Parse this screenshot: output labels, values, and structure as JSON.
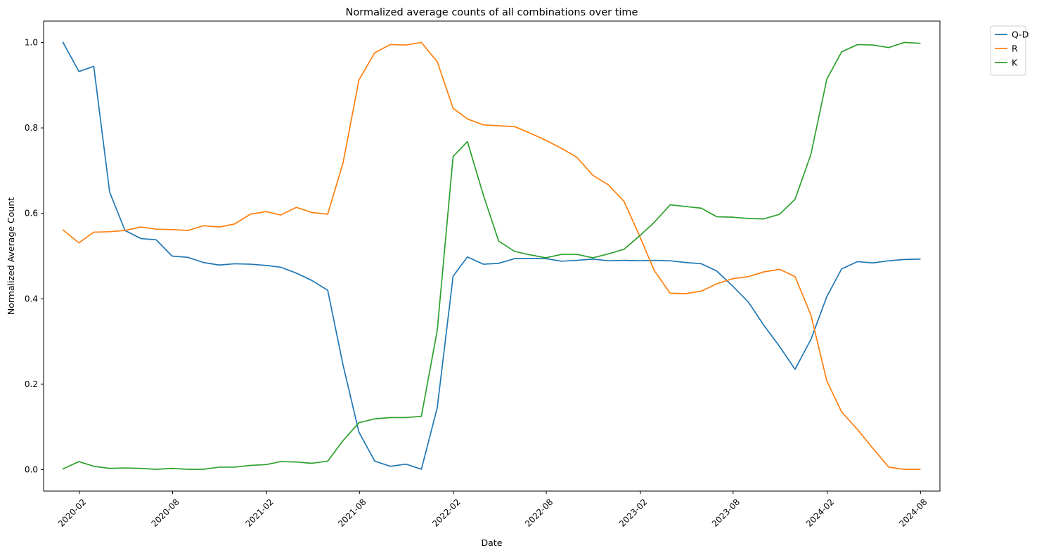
{
  "chart_data": {
    "type": "line",
    "title": "Normalized average counts of all combinations over time",
    "xlabel": "Date",
    "ylabel": "Normalized Average Count",
    "xlim": [
      "2019-11-23",
      "2024-09-08"
    ],
    "ylim": [
      -0.05,
      1.05
    ],
    "x_ticks": [
      "2020-02",
      "2020-08",
      "2021-02",
      "2021-08",
      "2022-02",
      "2022-08",
      "2023-02",
      "2023-08",
      "2024-02",
      "2024-08"
    ],
    "y_ticks": [
      "0.0",
      "0.2",
      "0.4",
      "0.6",
      "0.8",
      "1.0"
    ],
    "grid": false,
    "legend_position": "outside-top-right",
    "dates": [
      "2019-12-31",
      "2020-01-31",
      "2020-02-29",
      "2020-03-31",
      "2020-04-30",
      "2020-05-31",
      "2020-06-30",
      "2020-07-31",
      "2020-08-31",
      "2020-09-30",
      "2020-10-31",
      "2020-11-30",
      "2020-12-31",
      "2021-01-31",
      "2021-02-28",
      "2021-03-31",
      "2021-04-30",
      "2021-05-31",
      "2021-06-30",
      "2021-07-31",
      "2021-08-31",
      "2021-09-30",
      "2021-10-31",
      "2021-11-30",
      "2021-12-31",
      "2022-01-31",
      "2022-02-28",
      "2022-03-31",
      "2022-04-30",
      "2022-05-31",
      "2022-06-30",
      "2022-07-31",
      "2022-08-31",
      "2022-09-30",
      "2022-10-31",
      "2022-11-30",
      "2022-12-31",
      "2023-01-31",
      "2023-02-28",
      "2023-03-31",
      "2023-04-30",
      "2023-05-31",
      "2023-06-30",
      "2023-07-31",
      "2023-08-31",
      "2023-09-30",
      "2023-10-31",
      "2023-11-30",
      "2023-12-31",
      "2024-01-31",
      "2024-02-29",
      "2024-03-31",
      "2024-04-30",
      "2024-05-31",
      "2024-06-30",
      "2024-07-31"
    ],
    "series": [
      {
        "name": "Q-D",
        "color": "#1f77b4",
        "values": [
          1.0,
          0.932,
          0.944,
          0.65,
          0.56,
          0.541,
          0.538,
          0.5,
          0.497,
          0.485,
          0.479,
          0.482,
          0.481,
          0.478,
          0.474,
          0.46,
          0.443,
          0.42,
          0.245,
          0.088,
          0.02,
          0.008,
          0.013,
          0.001,
          0.145,
          0.453,
          0.498,
          0.481,
          0.483,
          0.494,
          0.494,
          0.494,
          0.488,
          0.49,
          0.493,
          0.489,
          0.49,
          0.489,
          0.49,
          0.489,
          0.485,
          0.482,
          0.465,
          0.43,
          0.392,
          0.338,
          0.288,
          0.235,
          0.305,
          0.405,
          0.47,
          0.487,
          0.484,
          0.489,
          0.492,
          0.493
        ]
      },
      {
        "name": "R",
        "color": "#ff7f0e",
        "values": [
          0.561,
          0.531,
          0.556,
          0.557,
          0.56,
          0.568,
          0.563,
          0.562,
          0.56,
          0.571,
          0.568,
          0.575,
          0.598,
          0.604,
          0.596,
          0.614,
          0.602,
          0.598,
          0.718,
          0.912,
          0.976,
          0.995,
          0.994,
          1.0,
          0.955,
          0.846,
          0.821,
          0.807,
          0.805,
          0.803,
          0.788,
          0.771,
          0.752,
          0.731,
          0.689,
          0.667,
          0.628,
          0.545,
          0.466,
          0.413,
          0.412,
          0.418,
          0.435,
          0.447,
          0.452,
          0.463,
          0.469,
          0.452,
          0.362,
          0.208,
          0.135,
          0.094,
          0.05,
          0.006,
          0.001,
          0.001
        ]
      },
      {
        "name": "K",
        "color": "#2ca02c",
        "values": [
          0.002,
          0.019,
          0.008,
          0.003,
          0.004,
          0.003,
          0.001,
          0.003,
          0.001,
          0.001,
          0.006,
          0.006,
          0.01,
          0.012,
          0.019,
          0.018,
          0.015,
          0.02,
          0.068,
          0.11,
          0.119,
          0.122,
          0.122,
          0.125,
          0.326,
          0.733,
          0.768,
          0.643,
          0.535,
          0.511,
          0.503,
          0.496,
          0.504,
          0.504,
          0.496,
          0.505,
          0.516,
          0.548,
          0.579,
          0.62,
          0.616,
          0.612,
          0.592,
          0.591,
          0.588,
          0.587,
          0.598,
          0.633,
          0.738,
          0.914,
          0.978,
          0.995,
          0.994,
          0.988,
          1.0,
          0.998
        ]
      }
    ]
  }
}
